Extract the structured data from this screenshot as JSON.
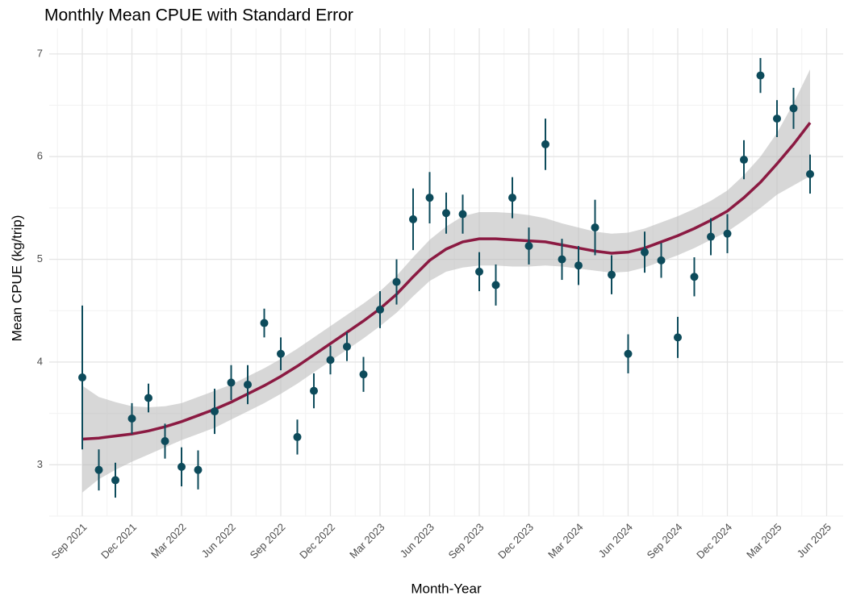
{
  "chart_data": {
    "type": "scatter",
    "title": "Monthly Mean CPUE with Standard Error",
    "x_label": "Month-Year",
    "y_label": "Mean CPUE (kg/trip)",
    "x": [
      "Sep 2021",
      "Oct 2021",
      "Nov 2021",
      "Dec 2021",
      "Jan 2022",
      "Feb 2022",
      "Mar 2022",
      "Apr 2022",
      "May 2022",
      "Jun 2022",
      "Jul 2022",
      "Aug 2022",
      "Sep 2022",
      "Oct 2022",
      "Nov 2022",
      "Dec 2022",
      "Jan 2023",
      "Feb 2023",
      "Mar 2023",
      "Apr 2023",
      "May 2023",
      "Jun 2023",
      "Jul 2023",
      "Aug 2023",
      "Sep 2023",
      "Oct 2023",
      "Nov 2023",
      "Dec 2023",
      "Jan 2024",
      "Feb 2024",
      "Mar 2024",
      "Apr 2024",
      "May 2024",
      "Jun 2024",
      "Jul 2024",
      "Aug 2024",
      "Sep 2024",
      "Oct 2024",
      "Nov 2024",
      "Dec 2024",
      "Jan 2025",
      "Feb 2025",
      "Mar 2025",
      "Apr 2025",
      "May 2025"
    ],
    "values": [
      3.85,
      2.95,
      2.85,
      3.45,
      3.65,
      3.23,
      2.98,
      2.95,
      3.52,
      3.8,
      3.78,
      4.38,
      4.08,
      3.27,
      3.72,
      4.02,
      4.15,
      3.88,
      4.51,
      4.78,
      5.39,
      5.6,
      5.45,
      5.44,
      4.88,
      4.75,
      5.6,
      5.13,
      6.12,
      5.0,
      4.94,
      5.31,
      4.85,
      4.08,
      5.07,
      4.99,
      4.24,
      4.83,
      5.22,
      5.25,
      5.97,
      6.79,
      6.37,
      6.47,
      5.83
    ],
    "errors": [
      0.7,
      0.2,
      0.17,
      0.15,
      0.14,
      0.17,
      0.19,
      0.19,
      0.22,
      0.17,
      0.19,
      0.14,
      0.16,
      0.17,
      0.17,
      0.14,
      0.14,
      0.17,
      0.18,
      0.22,
      0.3,
      0.25,
      0.2,
      0.19,
      0.19,
      0.2,
      0.2,
      0.18,
      0.25,
      0.2,
      0.19,
      0.27,
      0.19,
      0.19,
      0.2,
      0.17,
      0.2,
      0.19,
      0.18,
      0.19,
      0.19,
      0.17,
      0.18,
      0.2,
      0.19
    ],
    "color": "#0d4b5b",
    "fit": {
      "color": "#8b1a42",
      "band_color": "#bdbdbd",
      "values": [
        3.25,
        3.26,
        3.28,
        3.3,
        3.33,
        3.37,
        3.42,
        3.48,
        3.54,
        3.61,
        3.69,
        3.77,
        3.86,
        3.96,
        4.07,
        4.18,
        4.29,
        4.4,
        4.52,
        4.66,
        4.83,
        4.99,
        5.1,
        5.17,
        5.2,
        5.2,
        5.19,
        5.18,
        5.17,
        5.14,
        5.11,
        5.08,
        5.06,
        5.07,
        5.11,
        5.17,
        5.23,
        5.3,
        5.38,
        5.47,
        5.6,
        5.75,
        5.93,
        6.12,
        6.33
      ],
      "lower": [
        2.73,
        2.86,
        2.95,
        3.03,
        3.1,
        3.17,
        3.24,
        3.3,
        3.36,
        3.44,
        3.52,
        3.6,
        3.69,
        3.79,
        3.9,
        4.01,
        4.12,
        4.23,
        4.35,
        4.48,
        4.64,
        4.79,
        4.88,
        4.92,
        4.94,
        4.94,
        4.93,
        4.93,
        4.94,
        4.93,
        4.91,
        4.89,
        4.87,
        4.88,
        4.92,
        4.98,
        5.04,
        5.11,
        5.19,
        5.27,
        5.38,
        5.5,
        5.63,
        5.72,
        5.81
      ],
      "upper": [
        3.77,
        3.66,
        3.61,
        3.57,
        3.56,
        3.57,
        3.6,
        3.66,
        3.72,
        3.78,
        3.86,
        3.94,
        4.03,
        4.13,
        4.24,
        4.35,
        4.46,
        4.57,
        4.69,
        4.84,
        5.02,
        5.19,
        5.32,
        5.42,
        5.46,
        5.46,
        5.45,
        5.43,
        5.4,
        5.35,
        5.31,
        5.27,
        5.25,
        5.26,
        5.3,
        5.36,
        5.42,
        5.49,
        5.57,
        5.67,
        5.82,
        6.0,
        6.23,
        6.52,
        6.85
      ]
    },
    "xlim": [
      "Jul 2021",
      "Jul 2025"
    ],
    "xticks": [
      "Sep 2021",
      "Dec 2021",
      "Mar 2022",
      "Jun 2022",
      "Sep 2022",
      "Dec 2022",
      "Mar 2023",
      "Jun 2023",
      "Sep 2023",
      "Dec 2023",
      "Mar 2024",
      "Jun 2024",
      "Sep 2024",
      "Dec 2024",
      "Mar 2025",
      "Jun 2025"
    ],
    "ylim": [
      2.5,
      7.25
    ],
    "yticks": [
      3,
      4,
      5,
      6,
      7
    ],
    "grid": true
  }
}
